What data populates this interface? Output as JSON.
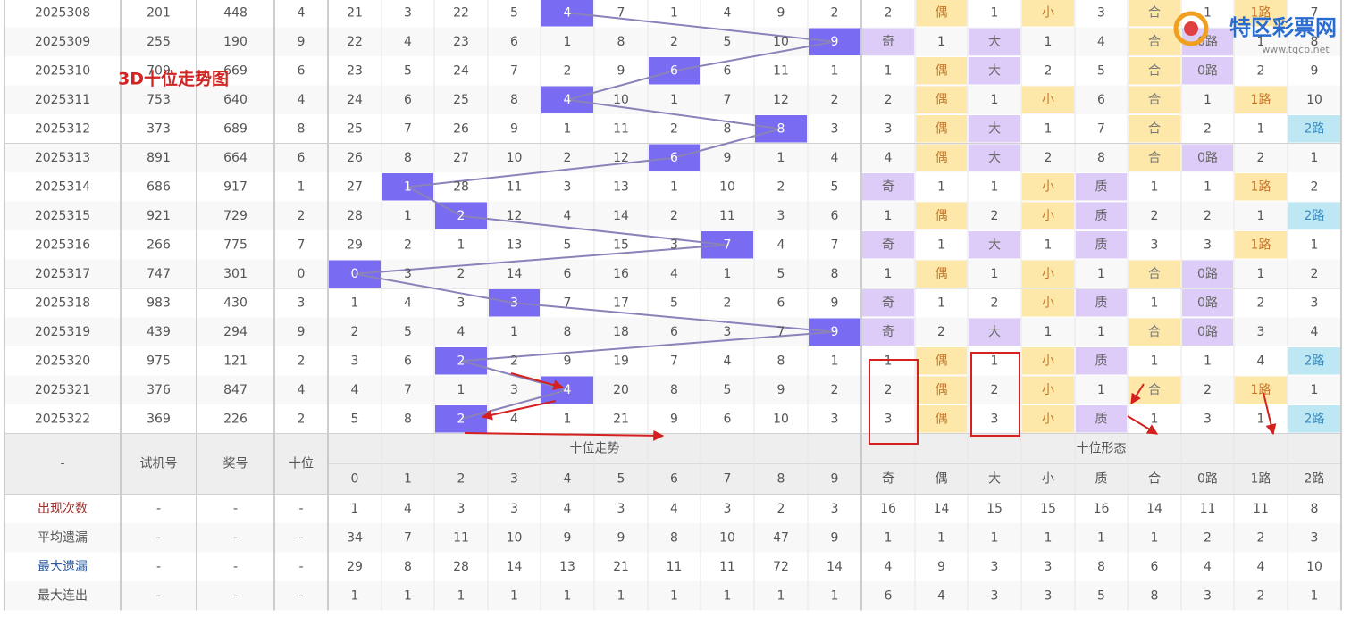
{
  "title_overlay": "3D十位走势图",
  "logo": {
    "name": "特区彩票网",
    "url": "www.tqcp.net"
  },
  "header": {
    "corner": "-",
    "cols": [
      "试机号",
      "奖号",
      "十位"
    ],
    "trend_title": "十位走势",
    "digits": [
      "0",
      "1",
      "2",
      "3",
      "4",
      "5",
      "6",
      "7",
      "8",
      "9"
    ],
    "form_title": "十位形态",
    "forms": [
      "奇",
      "偶",
      "大",
      "小",
      "质",
      "合",
      "0路",
      "1路",
      "2路"
    ]
  },
  "rows": [
    [
      "2025308",
      "201",
      "448",
      "4",
      "21",
      "3",
      "22",
      "5",
      "4",
      "7",
      "1",
      "4",
      "9",
      "2",
      "2",
      "偶",
      "1",
      "小",
      "3",
      "合",
      "1",
      "1路",
      "7"
    ],
    [
      "2025309",
      "255",
      "190",
      "9",
      "22",
      "4",
      "23",
      "6",
      "1",
      "8",
      "2",
      "5",
      "10",
      "9",
      "奇",
      "1",
      "大",
      "1",
      "4",
      "合",
      "0路",
      "1",
      "8"
    ],
    [
      "2025310",
      "709",
      "669",
      "6",
      "23",
      "5",
      "24",
      "7",
      "2",
      "9",
      "6",
      "6",
      "11",
      "1",
      "1",
      "偶",
      "大",
      "2",
      "5",
      "合",
      "0路",
      "2",
      "9"
    ],
    [
      "2025311",
      "753",
      "640",
      "4",
      "24",
      "6",
      "25",
      "8",
      "4",
      "10",
      "1",
      "7",
      "12",
      "2",
      "2",
      "偶",
      "1",
      "小",
      "6",
      "合",
      "1",
      "1路",
      "10"
    ],
    [
      "2025312",
      "373",
      "689",
      "8",
      "25",
      "7",
      "26",
      "9",
      "1",
      "11",
      "2",
      "8",
      "8",
      "3",
      "3",
      "偶",
      "大",
      "1",
      "7",
      "合",
      "2",
      "1",
      "2路"
    ],
    [
      "2025313",
      "891",
      "664",
      "6",
      "26",
      "8",
      "27",
      "10",
      "2",
      "12",
      "6",
      "9",
      "1",
      "4",
      "4",
      "偶",
      "大",
      "2",
      "8",
      "合",
      "0路",
      "2",
      "1"
    ],
    [
      "2025314",
      "686",
      "917",
      "1",
      "27",
      "1",
      "28",
      "11",
      "3",
      "13",
      "1",
      "10",
      "2",
      "5",
      "奇",
      "1",
      "1",
      "小",
      "质",
      "1",
      "1",
      "1路",
      "2"
    ],
    [
      "2025315",
      "921",
      "729",
      "2",
      "28",
      "1",
      "2",
      "12",
      "4",
      "14",
      "2",
      "11",
      "3",
      "6",
      "1",
      "偶",
      "2",
      "小",
      "质",
      "2",
      "2",
      "1",
      "2路"
    ],
    [
      "2025316",
      "266",
      "775",
      "7",
      "29",
      "2",
      "1",
      "13",
      "5",
      "15",
      "3",
      "7",
      "4",
      "7",
      "奇",
      "1",
      "大",
      "1",
      "质",
      "3",
      "3",
      "1路",
      "1"
    ],
    [
      "2025317",
      "747",
      "301",
      "0",
      "0",
      "3",
      "2",
      "14",
      "6",
      "16",
      "4",
      "1",
      "5",
      "8",
      "1",
      "偶",
      "1",
      "小",
      "1",
      "合",
      "0路",
      "1",
      "2"
    ],
    [
      "2025318",
      "983",
      "430",
      "3",
      "1",
      "4",
      "3",
      "3",
      "7",
      "17",
      "5",
      "2",
      "6",
      "9",
      "奇",
      "1",
      "2",
      "小",
      "质",
      "1",
      "0路",
      "2",
      "3"
    ],
    [
      "2025319",
      "439",
      "294",
      "9",
      "2",
      "5",
      "4",
      "1",
      "8",
      "18",
      "6",
      "3",
      "7",
      "9",
      "奇",
      "2",
      "大",
      "1",
      "1",
      "合",
      "0路",
      "3",
      "4"
    ],
    [
      "2025320",
      "975",
      "121",
      "2",
      "3",
      "6",
      "2",
      "2",
      "9",
      "19",
      "7",
      "4",
      "8",
      "1",
      "1",
      "偶",
      "1",
      "小",
      "质",
      "1",
      "1",
      "4",
      "2路"
    ],
    [
      "2025321",
      "376",
      "847",
      "4",
      "4",
      "7",
      "1",
      "3",
      "4",
      "20",
      "8",
      "5",
      "9",
      "2",
      "2",
      "偶",
      "2",
      "小",
      "1",
      "合",
      "2",
      "1路",
      "1"
    ],
    [
      "2025322",
      "369",
      "226",
      "2",
      "5",
      "8",
      "2",
      "4",
      "1",
      "21",
      "9",
      "6",
      "10",
      "3",
      "3",
      "偶",
      "3",
      "小",
      "质",
      "1",
      "3",
      "1",
      "2路"
    ]
  ],
  "summary": [
    {
      "label": "出现次数",
      "cells": [
        "-",
        "-",
        "-",
        "1",
        "4",
        "3",
        "3",
        "4",
        "3",
        "4",
        "3",
        "2",
        "3",
        "16",
        "14",
        "15",
        "15",
        "16",
        "14",
        "11",
        "11",
        "8"
      ]
    },
    {
      "label": "平均遗漏",
      "cells": [
        "-",
        "-",
        "-",
        "34",
        "7",
        "11",
        "10",
        "9",
        "9",
        "8",
        "10",
        "47",
        "9",
        "1",
        "1",
        "1",
        "1",
        "1",
        "1",
        "2",
        "2",
        "3"
      ]
    },
    {
      "label": "最大遗漏",
      "cells": [
        "-",
        "-",
        "-",
        "29",
        "8",
        "28",
        "14",
        "13",
        "21",
        "11",
        "11",
        "72",
        "14",
        "4",
        "9",
        "3",
        "3",
        "8",
        "6",
        "4",
        "4",
        "10"
      ]
    },
    {
      "label": "最大连出",
      "cells": [
        "-",
        "-",
        "-",
        "1",
        "1",
        "1",
        "1",
        "1",
        "1",
        "1",
        "1",
        "1",
        "1",
        "6",
        "4",
        "3",
        "3",
        "5",
        "8",
        "3",
        "2",
        "1"
      ]
    }
  ]
}
